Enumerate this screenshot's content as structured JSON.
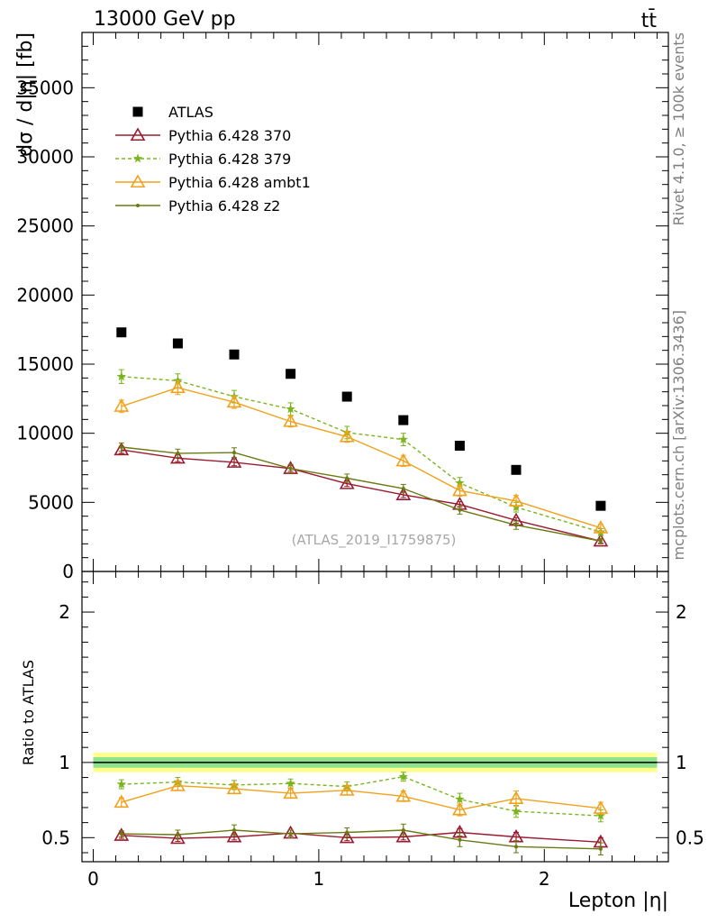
{
  "chart_data": {
    "type": "line",
    "header_left": "13000 GeV pp",
    "header_right": "tt̄",
    "side_label_top": "Rivet 4.1.0, ≥ 100k events",
    "side_label_bottom": "mcplots.cern.ch [arXiv:1306.3436]",
    "watermark": "(ATLAS_2019_I1759875)",
    "xlabel": "Lepton |η|",
    "ylabel": "dσ / d|η| [fb]",
    "ratio_ylabel": "Ratio to ATLAS",
    "xlim": [
      -0.05,
      2.55
    ],
    "ylim": [
      0,
      39000
    ],
    "ratio_ylim": [
      0.34,
      2.27
    ],
    "x_ticks": [
      0,
      1,
      2
    ],
    "x_tick_labels": [
      "0",
      "1",
      "2"
    ],
    "y_ticks": [
      0,
      5000,
      10000,
      15000,
      20000,
      25000,
      30000,
      35000
    ],
    "y_tick_labels": [
      "0",
      "5000",
      "10000",
      "15000",
      "20000",
      "25000",
      "30000",
      "35000"
    ],
    "ratio_ticks": [
      0.5,
      1,
      2
    ],
    "ratio_tick_labels": [
      "0.5",
      "1",
      "2"
    ],
    "bin_edges": [
      0,
      0.25,
      0.5,
      0.75,
      1.0,
      1.25,
      1.5,
      1.75,
      2.0,
      2.5
    ],
    "x": [
      0.125,
      0.375,
      0.625,
      0.875,
      1.125,
      1.375,
      1.625,
      1.875,
      2.25
    ],
    "legend": [
      {
        "label": "ATLAS",
        "color": "#000000",
        "marker": "square",
        "dash": false
      },
      {
        "label": "Pythia 6.428 370",
        "color": "#9B1B30",
        "marker": "open-triangle",
        "dash": false
      },
      {
        "label": "Pythia 6.428 379",
        "color": "#7AB51D",
        "marker": "star",
        "dash": true
      },
      {
        "label": "Pythia 6.428 ambt1",
        "color": "#F0A21C",
        "marker": "open-triangle",
        "dash": false
      },
      {
        "label": "Pythia 6.428 z2",
        "color": "#6B7A12",
        "marker": "dot",
        "dash": false
      }
    ],
    "data": {
      "name": "ATLAS",
      "values": [
        17300,
        16500,
        15700,
        14300,
        12650,
        10950,
        9100,
        7350,
        4750
      ]
    },
    "series": [
      {
        "name": "Pythia 6.428 370",
        "values": [
          8800,
          8200,
          7900,
          7450,
          6350,
          5550,
          4850,
          3700,
          2200
        ],
        "errors": [
          250,
          250,
          250,
          200,
          200,
          200,
          200,
          200,
          150
        ]
      },
      {
        "name": "Pythia 6.428 379",
        "values": [
          14100,
          13800,
          12650,
          11750,
          10050,
          9550,
          6400,
          4650,
          2850
        ],
        "errors": [
          500,
          500,
          450,
          450,
          450,
          450,
          400,
          350,
          250
        ]
      },
      {
        "name": "Pythia 6.428 ambt1",
        "values": [
          11950,
          13300,
          12250,
          10850,
          9750,
          8000,
          5850,
          5100,
          3150
        ],
        "errors": [
          450,
          500,
          450,
          400,
          400,
          400,
          400,
          400,
          250
        ]
      },
      {
        "name": "Pythia 6.428 z2",
        "values": [
          9000,
          8550,
          8600,
          7450,
          6750,
          6000,
          4450,
          3350,
          2200
        ],
        "errors": [
          300,
          300,
          350,
          300,
          300,
          300,
          300,
          300,
          200
        ]
      }
    ],
    "ratios": [
      {
        "name": "Pythia 6.428 370",
        "values": [
          0.515,
          0.495,
          0.505,
          0.53,
          0.5,
          0.505,
          0.535,
          0.505,
          0.47
        ],
        "errors": [
          0.02,
          0.02,
          0.02,
          0.02,
          0.02,
          0.02,
          0.025,
          0.03,
          0.03
        ]
      },
      {
        "name": "Pythia 6.428 379",
        "values": [
          0.855,
          0.87,
          0.85,
          0.86,
          0.84,
          0.905,
          0.755,
          0.675,
          0.645
        ],
        "errors": [
          0.03,
          0.03,
          0.03,
          0.03,
          0.03,
          0.03,
          0.04,
          0.04,
          0.04
        ]
      },
      {
        "name": "Pythia 6.428 ambt1",
        "values": [
          0.735,
          0.845,
          0.825,
          0.795,
          0.815,
          0.775,
          0.685,
          0.76,
          0.695
        ],
        "errors": [
          0.03,
          0.03,
          0.03,
          0.03,
          0.03,
          0.035,
          0.04,
          0.05,
          0.04
        ]
      },
      {
        "name": "Pythia 6.428 z2",
        "values": [
          0.525,
          0.52,
          0.55,
          0.525,
          0.535,
          0.55,
          0.485,
          0.44,
          0.425
        ],
        "errors": [
          0.02,
          0.03,
          0.035,
          0.025,
          0.03,
          0.04,
          0.045,
          0.04,
          0.04
        ]
      }
    ],
    "ratio_band": {
      "inner": 0.035,
      "outer": 0.065,
      "inner_color": "#8EE28E",
      "outer_color": "#FFFF8C"
    }
  }
}
